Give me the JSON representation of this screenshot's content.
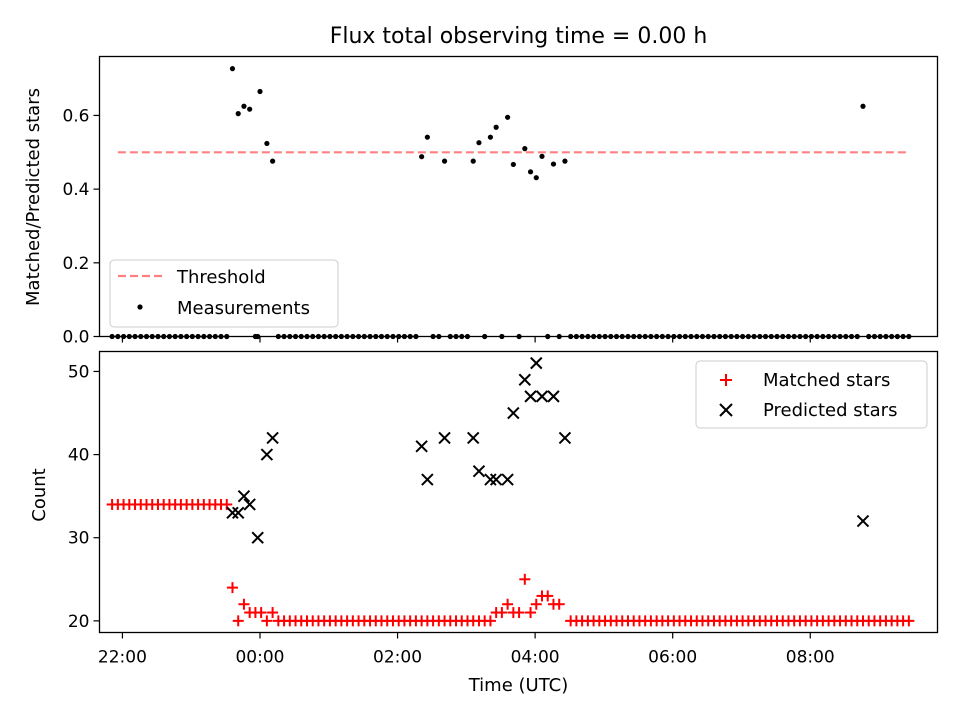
{
  "figure": {
    "title": "Flux total observing time = 0.00 h"
  },
  "chart_data": [
    {
      "type": "scatter",
      "panel": "top",
      "xlabel": "",
      "ylabel": "Matched/Predicted stars",
      "xlim": [
        "21:40",
        "09:51"
      ],
      "ylim": [
        0,
        0.76
      ],
      "yticks": [
        0.0,
        0.2,
        0.4,
        0.6
      ],
      "ytick_labels": [
        "0.0",
        "0.2",
        "0.4",
        "0.6"
      ],
      "legend": {
        "placement": "bottom-left",
        "entries": [
          "Threshold",
          "Measurements"
        ]
      },
      "series": [
        {
          "name": "Threshold",
          "type": "line",
          "color": "#ff8080",
          "dashed": true,
          "points": [
            [
              "21:56",
              0.5
            ],
            [
              "09:25",
              0.5
            ]
          ]
        },
        {
          "name": "Measurements",
          "type": "scatter",
          "color": "#000000",
          "points": [
            [
              "23:36",
              0.727
            ],
            [
              "23:41",
              0.605
            ],
            [
              "23:46",
              0.625
            ],
            [
              "23:51",
              0.617
            ],
            [
              "00:00",
              0.665
            ],
            [
              "00:06",
              0.524
            ],
            [
              "00:11",
              0.476
            ],
            [
              "02:21",
              0.488
            ],
            [
              "02:26",
              0.541
            ],
            [
              "02:41",
              0.476
            ],
            [
              "03:06",
              0.476
            ],
            [
              "03:11",
              0.526
            ],
            [
              "03:21",
              0.541
            ],
            [
              "03:26",
              0.568
            ],
            [
              "03:36",
              0.595
            ],
            [
              "03:41",
              0.467
            ],
            [
              "03:51",
              0.51
            ],
            [
              "03:56",
              0.447
            ],
            [
              "04:01",
              0.431
            ],
            [
              "04:06",
              0.489
            ],
            [
              "04:16",
              0.468
            ],
            [
              "04:26",
              0.476
            ],
            [
              "08:46",
              0.625
            ]
          ],
          "zero_value_times": [
            "21:51",
            "21:56",
            "22:01",
            "22:06",
            "22:11",
            "22:16",
            "22:21",
            "22:26",
            "22:31",
            "22:36",
            "22:41",
            "22:46",
            "22:51",
            "22:56",
            "23:01",
            "23:06",
            "23:11",
            "23:16",
            "23:21",
            "23:26",
            "23:31",
            "23:56",
            "23:58",
            "00:16",
            "00:21",
            "00:26",
            "00:31",
            "00:36",
            "00:41",
            "00:46",
            "00:51",
            "00:56",
            "01:01",
            "01:06",
            "01:11",
            "01:16",
            "01:21",
            "01:26",
            "01:31",
            "01:36",
            "01:41",
            "01:46",
            "01:51",
            "01:56",
            "02:01",
            "02:06",
            "02:11",
            "02:16",
            "02:31",
            "02:36",
            "02:46",
            "02:51",
            "02:56",
            "03:01",
            "03:16",
            "03:31",
            "03:46",
            "04:11",
            "04:21",
            "04:31",
            "04:36",
            "04:41",
            "04:46",
            "04:51",
            "04:56",
            "05:01",
            "05:06",
            "05:11",
            "05:16",
            "05:21",
            "05:26",
            "05:31",
            "05:36",
            "05:41",
            "05:46",
            "05:51",
            "05:56",
            "06:01",
            "06:06",
            "06:11",
            "06:16",
            "06:21",
            "06:26",
            "06:31",
            "06:36",
            "06:41",
            "06:46",
            "06:51",
            "06:56",
            "07:01",
            "07:06",
            "07:11",
            "07:16",
            "07:21",
            "07:26",
            "07:31",
            "07:36",
            "07:41",
            "07:46",
            "07:51",
            "07:56",
            "08:01",
            "08:06",
            "08:11",
            "08:16",
            "08:21",
            "08:26",
            "08:31",
            "08:36",
            "08:41",
            "08:51",
            "08:56",
            "09:01",
            "09:06",
            "09:11",
            "09:16",
            "09:21",
            "09:26"
          ]
        }
      ]
    },
    {
      "type": "scatter",
      "panel": "bottom",
      "xlabel": "Time (UTC)",
      "ylabel": "Count",
      "xlim": [
        "21:40",
        "09:51"
      ],
      "ylim": [
        18.6,
        52.4
      ],
      "yticks": [
        20,
        30,
        40,
        50
      ],
      "ytick_labels": [
        "20",
        "30",
        "40",
        "50"
      ],
      "xticks": [
        "22:00",
        "00:00",
        "02:00",
        "04:00",
        "06:00",
        "08:00"
      ],
      "legend": {
        "placement": "top-right",
        "entries": [
          "Matched stars",
          "Predicted stars"
        ]
      },
      "series": [
        {
          "name": "Matched stars",
          "marker": "+",
          "color": "#ff0000",
          "runs": [
            {
              "from": "21:51",
              "to": "23:31",
              "step_min": 5,
              "value": 34
            },
            {
              "from": "00:16",
              "to": "03:16",
              "step_min": 5,
              "value": 20
            },
            {
              "from": "04:31",
              "to": "09:26",
              "step_min": 5,
              "value": 20
            }
          ],
          "points": [
            [
              "23:36",
              24
            ],
            [
              "23:41",
              20
            ],
            [
              "23:46",
              22
            ],
            [
              "23:51",
              21
            ],
            [
              "23:56",
              21
            ],
            [
              "00:01",
              21
            ],
            [
              "00:06",
              20
            ],
            [
              "00:11",
              21
            ],
            [
              "03:21",
              20
            ],
            [
              "03:26",
              21
            ],
            [
              "03:31",
              21
            ],
            [
              "03:36",
              22
            ],
            [
              "03:41",
              21
            ],
            [
              "03:46",
              21
            ],
            [
              "03:51",
              25
            ],
            [
              "03:56",
              21
            ],
            [
              "04:01",
              22
            ],
            [
              "04:06",
              23
            ],
            [
              "04:11",
              23
            ],
            [
              "04:16",
              22
            ],
            [
              "04:21",
              22
            ]
          ]
        },
        {
          "name": "Predicted stars",
          "marker": "x",
          "color": "#000000",
          "points": [
            [
              "23:36",
              33
            ],
            [
              "23:41",
              33
            ],
            [
              "23:46",
              35
            ],
            [
              "23:51",
              34
            ],
            [
              "23:58",
              30
            ],
            [
              "00:06",
              40
            ],
            [
              "00:11",
              42
            ],
            [
              "02:21",
              41
            ],
            [
              "02:26",
              37
            ],
            [
              "02:41",
              42
            ],
            [
              "03:06",
              42
            ],
            [
              "03:11",
              38
            ],
            [
              "03:21",
              37
            ],
            [
              "03:26",
              37
            ],
            [
              "03:36",
              37
            ],
            [
              "03:41",
              45
            ],
            [
              "03:51",
              49
            ],
            [
              "03:56",
              47
            ],
            [
              "04:01",
              51
            ],
            [
              "04:06",
              47
            ],
            [
              "04:16",
              47
            ],
            [
              "04:26",
              42
            ],
            [
              "08:46",
              32
            ]
          ]
        }
      ]
    }
  ]
}
